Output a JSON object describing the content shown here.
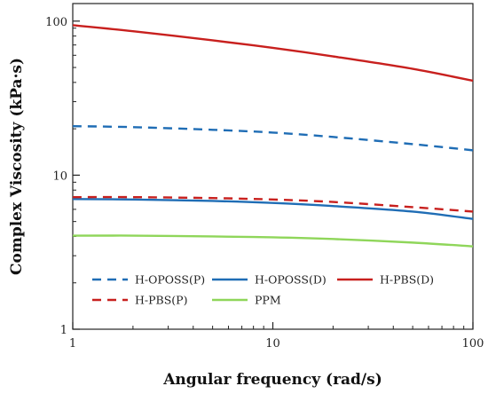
{
  "chart_data": {
    "type": "line",
    "xlabel": "Angular frequency (rad/s)",
    "ylabel": "Complex Viscosity  (kPa·s)",
    "x_scale": "log",
    "y_scale": "log",
    "xlim": [
      1,
      100
    ],
    "ylim": [
      1,
      130
    ],
    "x_ticks": [
      1,
      10,
      100
    ],
    "x_tick_labels": [
      "1",
      "10",
      "100"
    ],
    "y_ticks": [
      1,
      10,
      100
    ],
    "y_tick_labels": [
      "1",
      "10",
      "100"
    ],
    "grid": false,
    "legend_position": "bottom-left",
    "series": [
      {
        "name": "H-OPOSS(P)",
        "color": "#1f6db5",
        "dash": "dashed",
        "x": [
          1,
          2,
          5,
          10,
          20,
          50,
          100
        ],
        "y": [
          20.8,
          20.5,
          19.7,
          18.9,
          17.7,
          15.9,
          14.5
        ]
      },
      {
        "name": "H-OPOSS(D)",
        "color": "#1f6db5",
        "dash": "solid",
        "x": [
          1,
          2,
          5,
          10,
          20,
          50,
          100
        ],
        "y": [
          7.0,
          6.95,
          6.8,
          6.6,
          6.3,
          5.8,
          5.2
        ]
      },
      {
        "name": "H-PBS(D)",
        "color": "#c8201e",
        "dash": "solid",
        "x": [
          1,
          2,
          5,
          10,
          20,
          50,
          100
        ],
        "y": [
          94,
          86,
          75,
          67,
          59,
          49,
          41
        ]
      },
      {
        "name": "H-PBS(P)",
        "color": "#c8201e",
        "dash": "dashed",
        "x": [
          1,
          2,
          5,
          10,
          20,
          50,
          100
        ],
        "y": [
          7.2,
          7.2,
          7.1,
          6.95,
          6.7,
          6.2,
          5.8
        ]
      },
      {
        "name": "PPM",
        "color": "#8fd65a",
        "dash": "solid",
        "x": [
          1,
          2,
          5,
          10,
          20,
          50,
          100
        ],
        "y": [
          4.05,
          4.05,
          4.0,
          3.95,
          3.85,
          3.65,
          3.45
        ]
      }
    ]
  }
}
